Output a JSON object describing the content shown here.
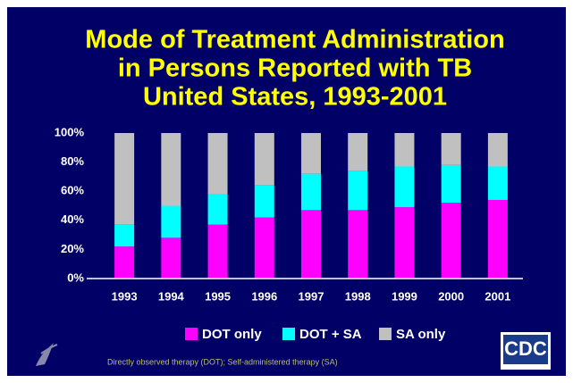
{
  "chart_data": {
    "type": "stacked_bar",
    "title": [
      "Mode of Treatment Administration",
      "in Persons Reported with TB",
      "United States, 1993-2001"
    ],
    "categories": [
      "1993",
      "1994",
      "1995",
      "1996",
      "1997",
      "1998",
      "1999",
      "2000",
      "2001"
    ],
    "series": [
      {
        "name": "DOT only",
        "color": "#ff00ff",
        "values": [
          22,
          28,
          37,
          42,
          47,
          47,
          49,
          52,
          54
        ]
      },
      {
        "name": "DOT + SA",
        "color": "#00ffff",
        "values": [
          15,
          22,
          21,
          22,
          25,
          27,
          28,
          26,
          23
        ]
      },
      {
        "name": "SA only",
        "color": "#c0c0c0",
        "values": [
          63,
          50,
          42,
          36,
          28,
          26,
          23,
          22,
          23
        ]
      }
    ],
    "ylim": [
      0,
      100
    ],
    "yticks": [
      {
        "value": 0,
        "label": "0%"
      },
      {
        "value": 20,
        "label": "20%"
      },
      {
        "value": 40,
        "label": "40%"
      },
      {
        "value": 60,
        "label": "60%"
      },
      {
        "value": 80,
        "label": "80%"
      },
      {
        "value": 100,
        "label": "100%"
      }
    ],
    "legend_position": "bottom",
    "footnote": "Directly observed therapy (DOT); Self-administered therapy (SA)",
    "logo": "CDC"
  }
}
